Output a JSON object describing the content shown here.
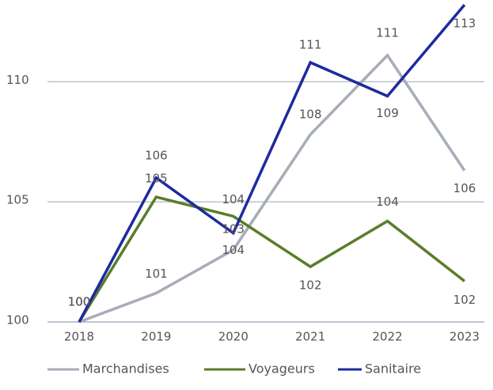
{
  "chart_data": {
    "type": "line",
    "categories": [
      "2018",
      "2019",
      "2020",
      "2021",
      "2022",
      "2023"
    ],
    "series": [
      {
        "name": "Marchandises",
        "color": "#a6adb8",
        "values": [
          100,
          101.2,
          103.0,
          107.8,
          111.1,
          106.3
        ],
        "value_labels": [
          "100",
          "101",
          "103",
          "108",
          "111",
          "106"
        ]
      },
      {
        "name": "Voyageurs",
        "color": "#5a7d2a",
        "values": [
          100,
          105.2,
          104.4,
          102.3,
          104.2,
          101.7
        ],
        "value_labels": [
          "100",
          "105",
          "104",
          "102",
          "104",
          "102"
        ]
      },
      {
        "name": "Sanitaire",
        "color": "#1e2a9e",
        "values": [
          100,
          106.0,
          103.7,
          110.8,
          109.4,
          113.2
        ],
        "value_labels": [
          "100",
          "106",
          "104",
          "111",
          "109",
          "113"
        ]
      }
    ],
    "ylim": [
      100,
      113.4
    ],
    "yticks": [
      100,
      105,
      110
    ],
    "grid": true
  }
}
